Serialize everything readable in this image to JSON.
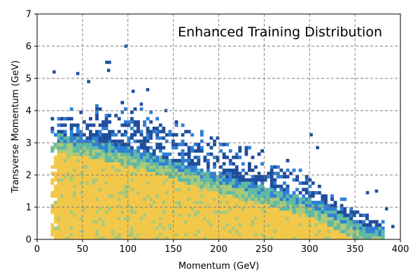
{
  "chart_data": {
    "type": "heatmap",
    "title": "Enhanced Training Distribution",
    "xlabel": "Momentum (GeV)",
    "ylabel": "Transverse Momentum (GeV)",
    "xlim": [
      0,
      400
    ],
    "ylim": [
      0,
      7
    ],
    "xticks": [
      "0",
      "50",
      "100",
      "150",
      "200",
      "250",
      "300",
      "350",
      "400"
    ],
    "yticks": [
      "0",
      "1",
      "2",
      "3",
      "4",
      "5",
      "6",
      "7"
    ],
    "grid": true,
    "grid_style": "dashed",
    "title_placement": "top-right inside axes",
    "colormap": [
      "#1f4e9c",
      "#2f7fd6",
      "#5fb9a4",
      "#a9c97a",
      "#f2c84b"
    ],
    "bin_width": [
      3.5,
      0.1
    ],
    "envelope": {
      "description": "density region bounded by momentum ~15-375 GeV; dense core below a line falling from ~3.0 GeV at 20 GeV to ~0 GeV at ~360 GeV; sparse tail extends to ~4.2 GeV",
      "momentum_start": 15,
      "core_top": [
        [
          20,
          3.0
        ],
        [
          100,
          2.55
        ],
        [
          200,
          1.7
        ],
        [
          300,
          0.95
        ],
        [
          360,
          0.1
        ]
      ],
      "tail_top": [
        [
          20,
          4.1
        ],
        [
          100,
          4.3
        ],
        [
          200,
          3.3
        ],
        [
          300,
          2.1
        ],
        [
          375,
          0.6
        ]
      ]
    },
    "outliers": [
      [
        17,
        5.15
      ],
      [
        43,
        5.1
      ],
      [
        55,
        4.85
      ],
      [
        75,
        5.45
      ],
      [
        78,
        5.45
      ],
      [
        77,
        5.2
      ],
      [
        96,
        5.95
      ],
      [
        104,
        4.55
      ],
      [
        113,
        4.15
      ],
      [
        120,
        4.6
      ],
      [
        140,
        3.95
      ],
      [
        300,
        3.2
      ],
      [
        307,
        2.8
      ],
      [
        362,
        1.4
      ],
      [
        372,
        1.45
      ],
      [
        383,
        0.9
      ],
      [
        390,
        0.35
      ]
    ]
  }
}
